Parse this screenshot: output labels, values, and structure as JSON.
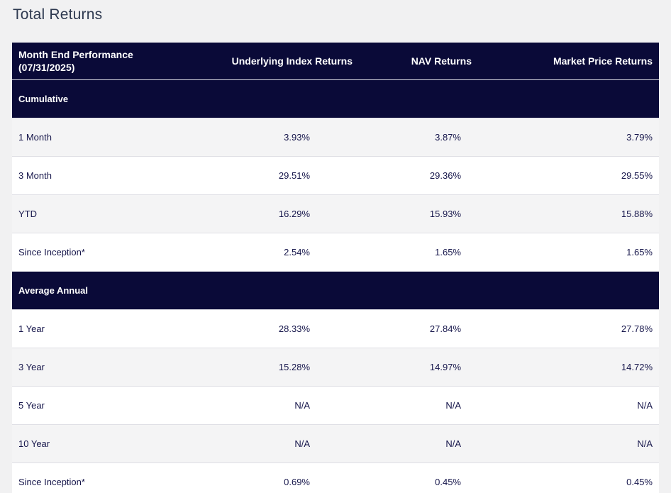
{
  "page": {
    "title": "Total Returns"
  },
  "colors": {
    "navy": "#0a0a38",
    "page_bg": "#f1f1f2",
    "row_alt": "#f4f4f5",
    "row_white": "#ffffff",
    "divider": "#dfdfe5",
    "value_text": "#16164b",
    "title_text": "#2e3950",
    "header_text": "#ffffff"
  },
  "table": {
    "columns": {
      "label": "Month End Performance\n(07/31/2025)",
      "underlying_index": "Underlying Index Returns",
      "nav": "NAV Returns",
      "market_price": "Market Price Returns"
    },
    "sections": [
      {
        "label": "Cumulative",
        "rows": [
          {
            "label": "1 Month",
            "values": [
              "3.93%",
              "3.87%",
              "3.79%"
            ]
          },
          {
            "label": "3 Month",
            "values": [
              "29.51%",
              "29.36%",
              "29.55%"
            ]
          },
          {
            "label": "YTD",
            "values": [
              "16.29%",
              "15.93%",
              "15.88%"
            ]
          },
          {
            "label": "Since Inception*",
            "values": [
              "2.54%",
              "1.65%",
              "1.65%"
            ]
          }
        ]
      },
      {
        "label": "Average Annual",
        "rows": [
          {
            "label": "1 Year",
            "values": [
              "28.33%",
              "27.84%",
              "27.78%"
            ]
          },
          {
            "label": "3 Year",
            "values": [
              "15.28%",
              "14.97%",
              "14.72%"
            ]
          },
          {
            "label": "5 Year",
            "values": [
              "N/A",
              "N/A",
              "N/A"
            ]
          },
          {
            "label": "10 Year",
            "values": [
              "N/A",
              "N/A",
              "N/A"
            ]
          },
          {
            "label": "Since Inception*",
            "values": [
              "0.69%",
              "0.45%",
              "0.45%"
            ]
          }
        ]
      }
    ]
  }
}
